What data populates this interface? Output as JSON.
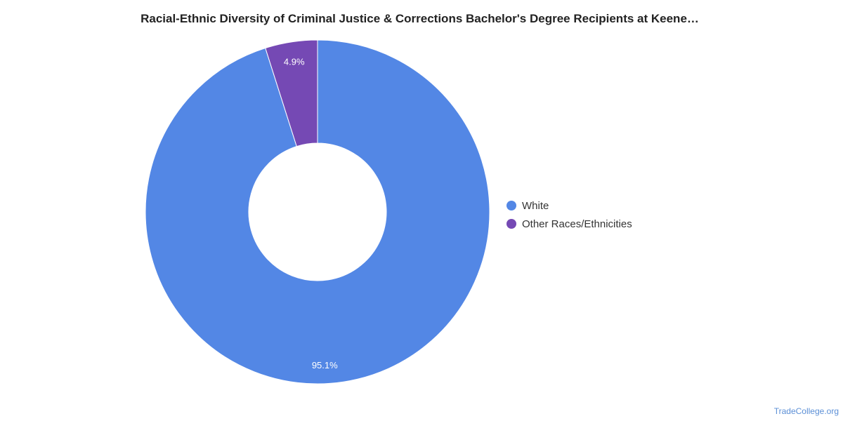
{
  "chart_data": {
    "type": "pie",
    "title": "Racial-Ethnic Diversity of Criminal Justice & Corrections Bachelor's Degree Recipients at Keene…",
    "categories": [
      "White",
      "Other Races/Ethnicities"
    ],
    "values": [
      95.1,
      4.9
    ],
    "value_labels": [
      "95.1%",
      "4.9%"
    ],
    "colors": [
      "#5387e5",
      "#7549b4"
    ],
    "donut": true,
    "legend_position": "right"
  },
  "watermark": "TradeCollege.org"
}
